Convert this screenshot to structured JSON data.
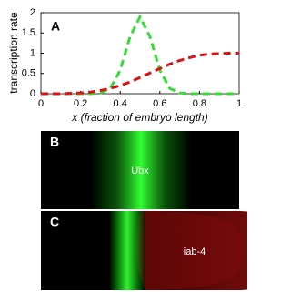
{
  "chart_data": {
    "type": "line",
    "panel_label": "A",
    "y_label": "transcription rate",
    "x_label": "x (fraction of embryo length)",
    "x": [
      0,
      0.05,
      0.1,
      0.15,
      0.2,
      0.25,
      0.3,
      0.35,
      0.4,
      0.45,
      0.5,
      0.55,
      0.6,
      0.65,
      0.7,
      0.75,
      0.8,
      0.85,
      0.9,
      0.95,
      1
    ],
    "series": [
      {
        "color": "#33dd33",
        "values": [
          0,
          0,
          0,
          0,
          0,
          0,
          0.02,
          0.13,
          0.58,
          1.41,
          1.9,
          1.41,
          0.58,
          0.13,
          0.02,
          0,
          0,
          0,
          0,
          0,
          0
        ]
      },
      {
        "color": "#dd1111",
        "values": [
          0,
          0,
          0,
          0.01,
          0.02,
          0.04,
          0.08,
          0.13,
          0.2,
          0.29,
          0.4,
          0.51,
          0.62,
          0.73,
          0.82,
          0.89,
          0.95,
          0.98,
          0.99,
          1,
          1
        ]
      }
    ],
    "xlim": [
      0,
      1
    ],
    "ylim": [
      0,
      2
    ],
    "xticks": [
      0,
      0.2,
      0.4,
      0.6,
      0.8,
      1
    ],
    "yticks": [
      0,
      0.5,
      1,
      1.5,
      2
    ]
  },
  "panels": [
    {
      "label": "B",
      "gene": "Ubx"
    },
    {
      "label": "C",
      "gene": "iab-4"
    }
  ]
}
